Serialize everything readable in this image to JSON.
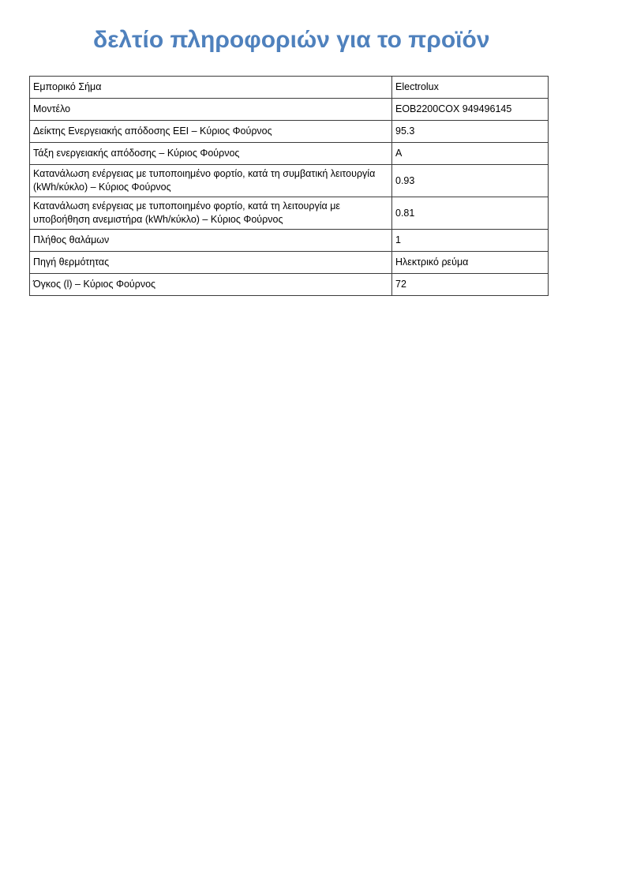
{
  "page": {
    "title": "δελτίο πληροφοριών για το προϊόν",
    "title_color": "#4f81bd",
    "background_color": "#ffffff",
    "border_color": "#3b3b3b"
  },
  "table": {
    "rows": [
      {
        "label": "Εμπορικό Σήμα",
        "value": "Electrolux"
      },
      {
        "label": "Μοντέλο",
        "value": "EOB2200COX 949496145"
      },
      {
        "label": "Δείκτης Ενεργειακής απόδοσης EEI – Κύριος Φούρνος",
        "value": "95.3"
      },
      {
        "label": "Τάξη ενεργειακής απόδοσης – Κύριος Φούρνος",
        "value": "A"
      },
      {
        "label": "Κατανάλωση ενέργειας με τυποποιημένο φορτίο, κατά τη συμβατική λειτουργία (kWh/κύκλο) – Κύριος Φούρνος",
        "value": "0.93"
      },
      {
        "label": "Κατανάλωση ενέργειας με τυποποιημένο φορτίο, κατά τη λειτουργία με υποβοήθηση ανεμιστήρα (kWh/κύκλο) – Κύριος Φούρνος",
        "value": "0.81"
      },
      {
        "label": "Πλήθος θαλάμων",
        "value": "1"
      },
      {
        "label": "Πηγή θερμότητας",
        "value": "Ηλεκτρικό ρεύμα"
      },
      {
        "label": "Όγκος (l) – Κύριος Φούρνος",
        "value": "72"
      }
    ]
  }
}
